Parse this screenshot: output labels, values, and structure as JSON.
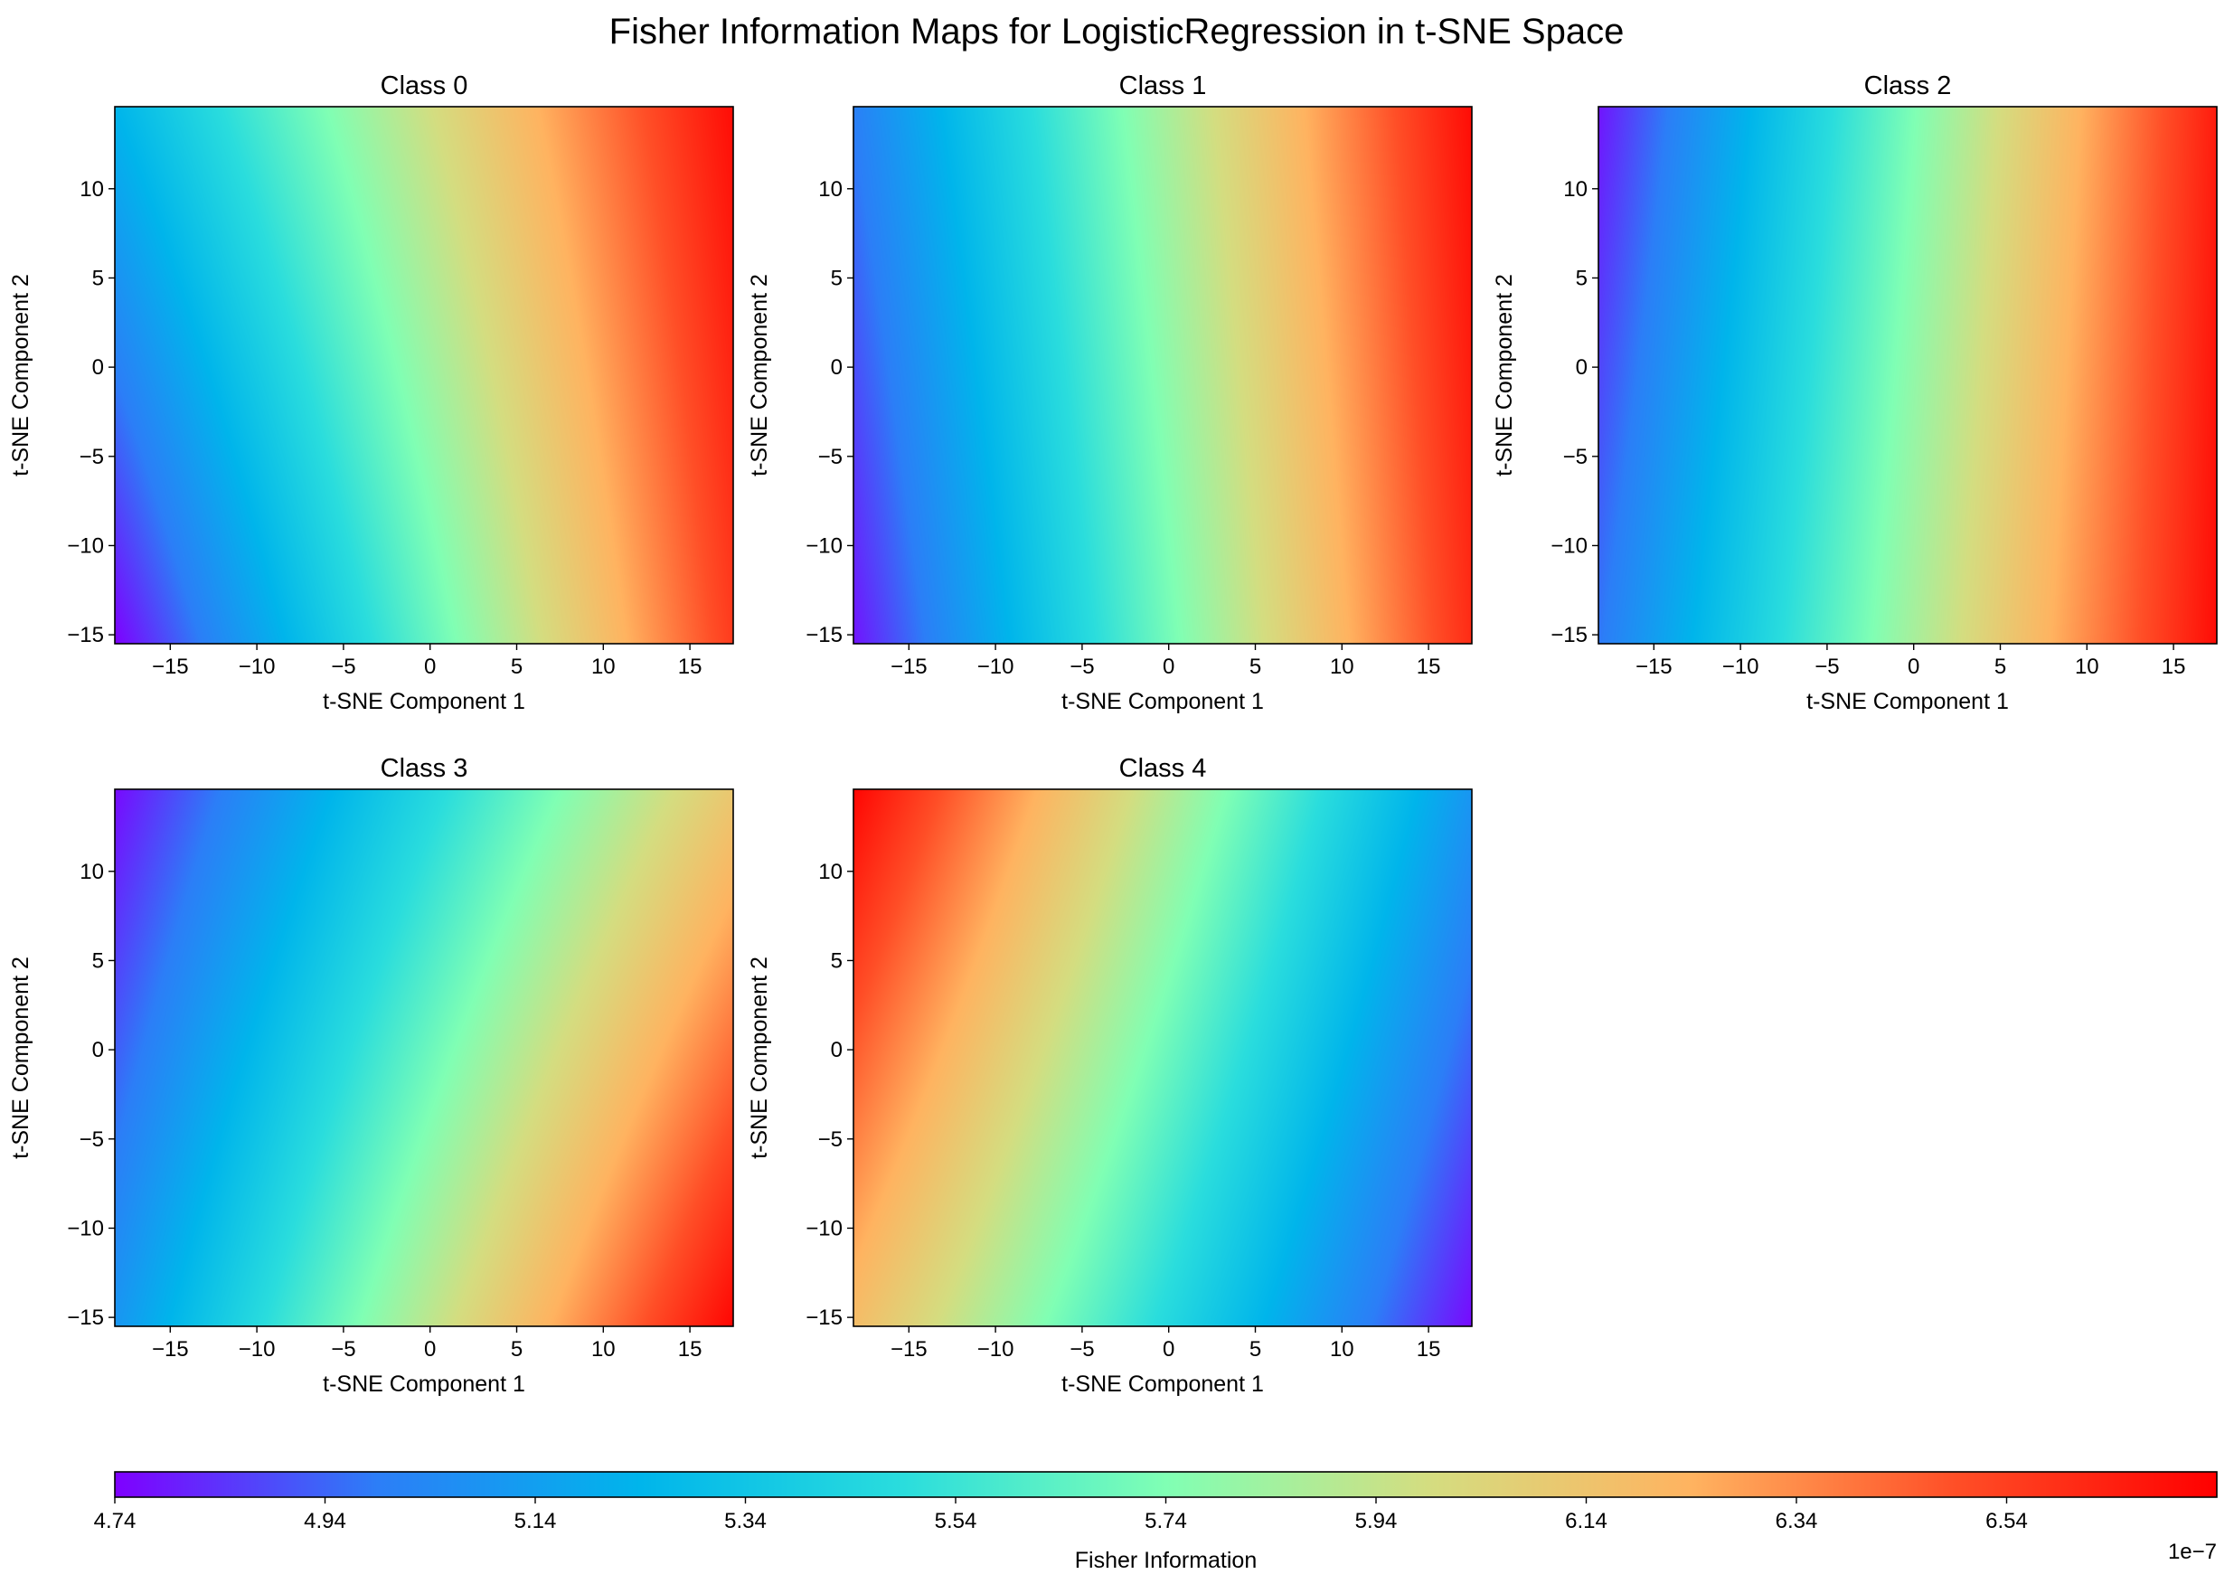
{
  "figure": {
    "title": "Fisher Information Maps for LogisticRegression in t-SNE Space"
  },
  "colormap": {
    "name": "rainbow",
    "stops": [
      "#7f00ff",
      "#2c7ef7",
      "#00b5eb",
      "#2adddd",
      "#80ffb4",
      "#d4dd80",
      "#ffb360",
      "#ff4f27",
      "#ff0000"
    ]
  },
  "chart_data": [
    {
      "type": "heatmap",
      "title": "Class 0",
      "xlabel": "t-SNE Component 1",
      "ylabel": "t-SNE Component 2",
      "xlim": [
        -18.2,
        17.5
      ],
      "ylim": [
        -15.5,
        14.6
      ],
      "xticks": [
        -15,
        -10,
        -5,
        0,
        5,
        10,
        15
      ],
      "yticks": [
        -15,
        -10,
        -5,
        0,
        5,
        10
      ],
      "corners": {
        "bottom_left": 4.74e-07,
        "bottom_right": 6.55e-07,
        "top_left": 5.24e-07,
        "top_right": 6.7e-07
      }
    },
    {
      "type": "heatmap",
      "title": "Class 1",
      "xlabel": "t-SNE Component 1",
      "ylabel": "t-SNE Component 2",
      "xlim": [
        -18.2,
        17.5
      ],
      "ylim": [
        -15.5,
        14.6
      ],
      "xticks": [
        -15,
        -10,
        -5,
        0,
        5,
        10,
        15
      ],
      "yticks": [
        -15,
        -10,
        -5,
        0,
        5,
        10
      ],
      "corners": {
        "bottom_left": 4.78e-07,
        "bottom_right": 6.6e-07,
        "top_left": 5e-07,
        "top_right": 6.7e-07
      }
    },
    {
      "type": "heatmap",
      "title": "Class 2",
      "xlabel": "t-SNE Component 1",
      "ylabel": "t-SNE Component 2",
      "xlim": [
        -18.2,
        17.5
      ],
      "ylim": [
        -15.5,
        14.6
      ],
      "xticks": [
        -15,
        -10,
        -5,
        0,
        5,
        10,
        15
      ],
      "yticks": [
        -15,
        -10,
        -5,
        0,
        5,
        10
      ],
      "corners": {
        "bottom_left": 4.98e-07,
        "bottom_right": 6.7e-07,
        "top_left": 4.78e-07,
        "top_right": 6.65e-07
      }
    },
    {
      "type": "heatmap",
      "title": "Class 3",
      "xlabel": "t-SNE Component 1",
      "ylabel": "t-SNE Component 2",
      "xlim": [
        -18.2,
        17.5
      ],
      "ylim": [
        -15.5,
        14.6
      ],
      "xticks": [
        -15,
        -10,
        -5,
        0,
        5,
        10,
        15
      ],
      "yticks": [
        -15,
        -10,
        -5,
        0,
        5,
        10
      ],
      "corners": {
        "bottom_left": 5.1e-07,
        "bottom_right": 6.72e-07,
        "top_left": 4.76e-07,
        "top_right": 6.12e-07
      }
    },
    {
      "type": "heatmap",
      "title": "Class 4",
      "xlabel": "t-SNE Component 1",
      "ylabel": "t-SNE Component 2",
      "xlim": [
        -18.2,
        17.5
      ],
      "ylim": [
        -15.5,
        14.6
      ],
      "xticks": [
        -15,
        -10,
        -5,
        0,
        5,
        10,
        15
      ],
      "yticks": [
        -15,
        -10,
        -5,
        0,
        5,
        10
      ],
      "corners": {
        "bottom_left": 6.18e-07,
        "bottom_right": 4.76e-07,
        "top_left": 6.72e-07,
        "top_right": 5.1e-07
      }
    }
  ],
  "colorbar": {
    "label": "Fisher Information",
    "range": [
      4.74e-07,
      6.74e-07
    ],
    "ticks": [
      4.74,
      4.94,
      5.14,
      5.34,
      5.54,
      5.74,
      5.94,
      6.14,
      6.34,
      6.54
    ],
    "tick_labels": [
      "4.74",
      "4.94",
      "5.14",
      "5.34",
      "5.54",
      "5.74",
      "5.94",
      "6.14",
      "6.34",
      "6.54"
    ],
    "offset_text": "1e−7",
    "orientation": "horizontal"
  }
}
